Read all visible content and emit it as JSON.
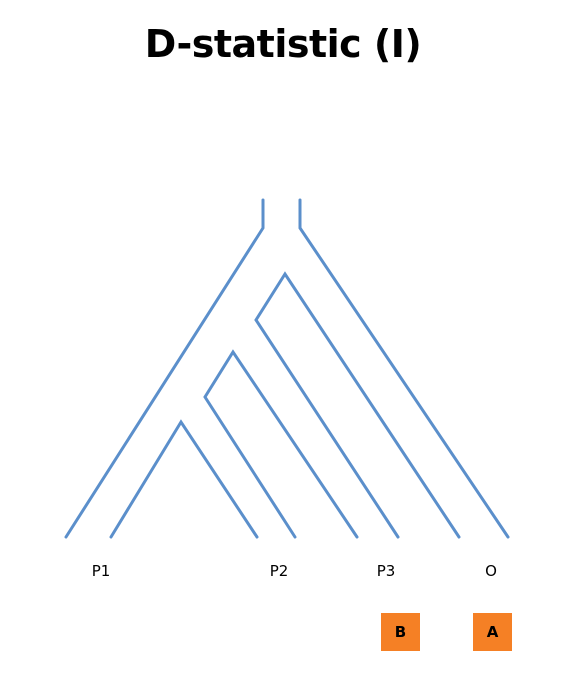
{
  "title": "D-statistic (I)",
  "colors": {
    "branch": "#5b8fcb",
    "box": "#f58025"
  },
  "taxa": [
    {
      "label": "P1"
    },
    {
      "label": "P2"
    },
    {
      "label": "P3"
    },
    {
      "label": "O"
    }
  ],
  "alleles": [
    {
      "taxon": "P3",
      "label": "B"
    },
    {
      "taxon": "O",
      "label": "A"
    }
  ]
}
